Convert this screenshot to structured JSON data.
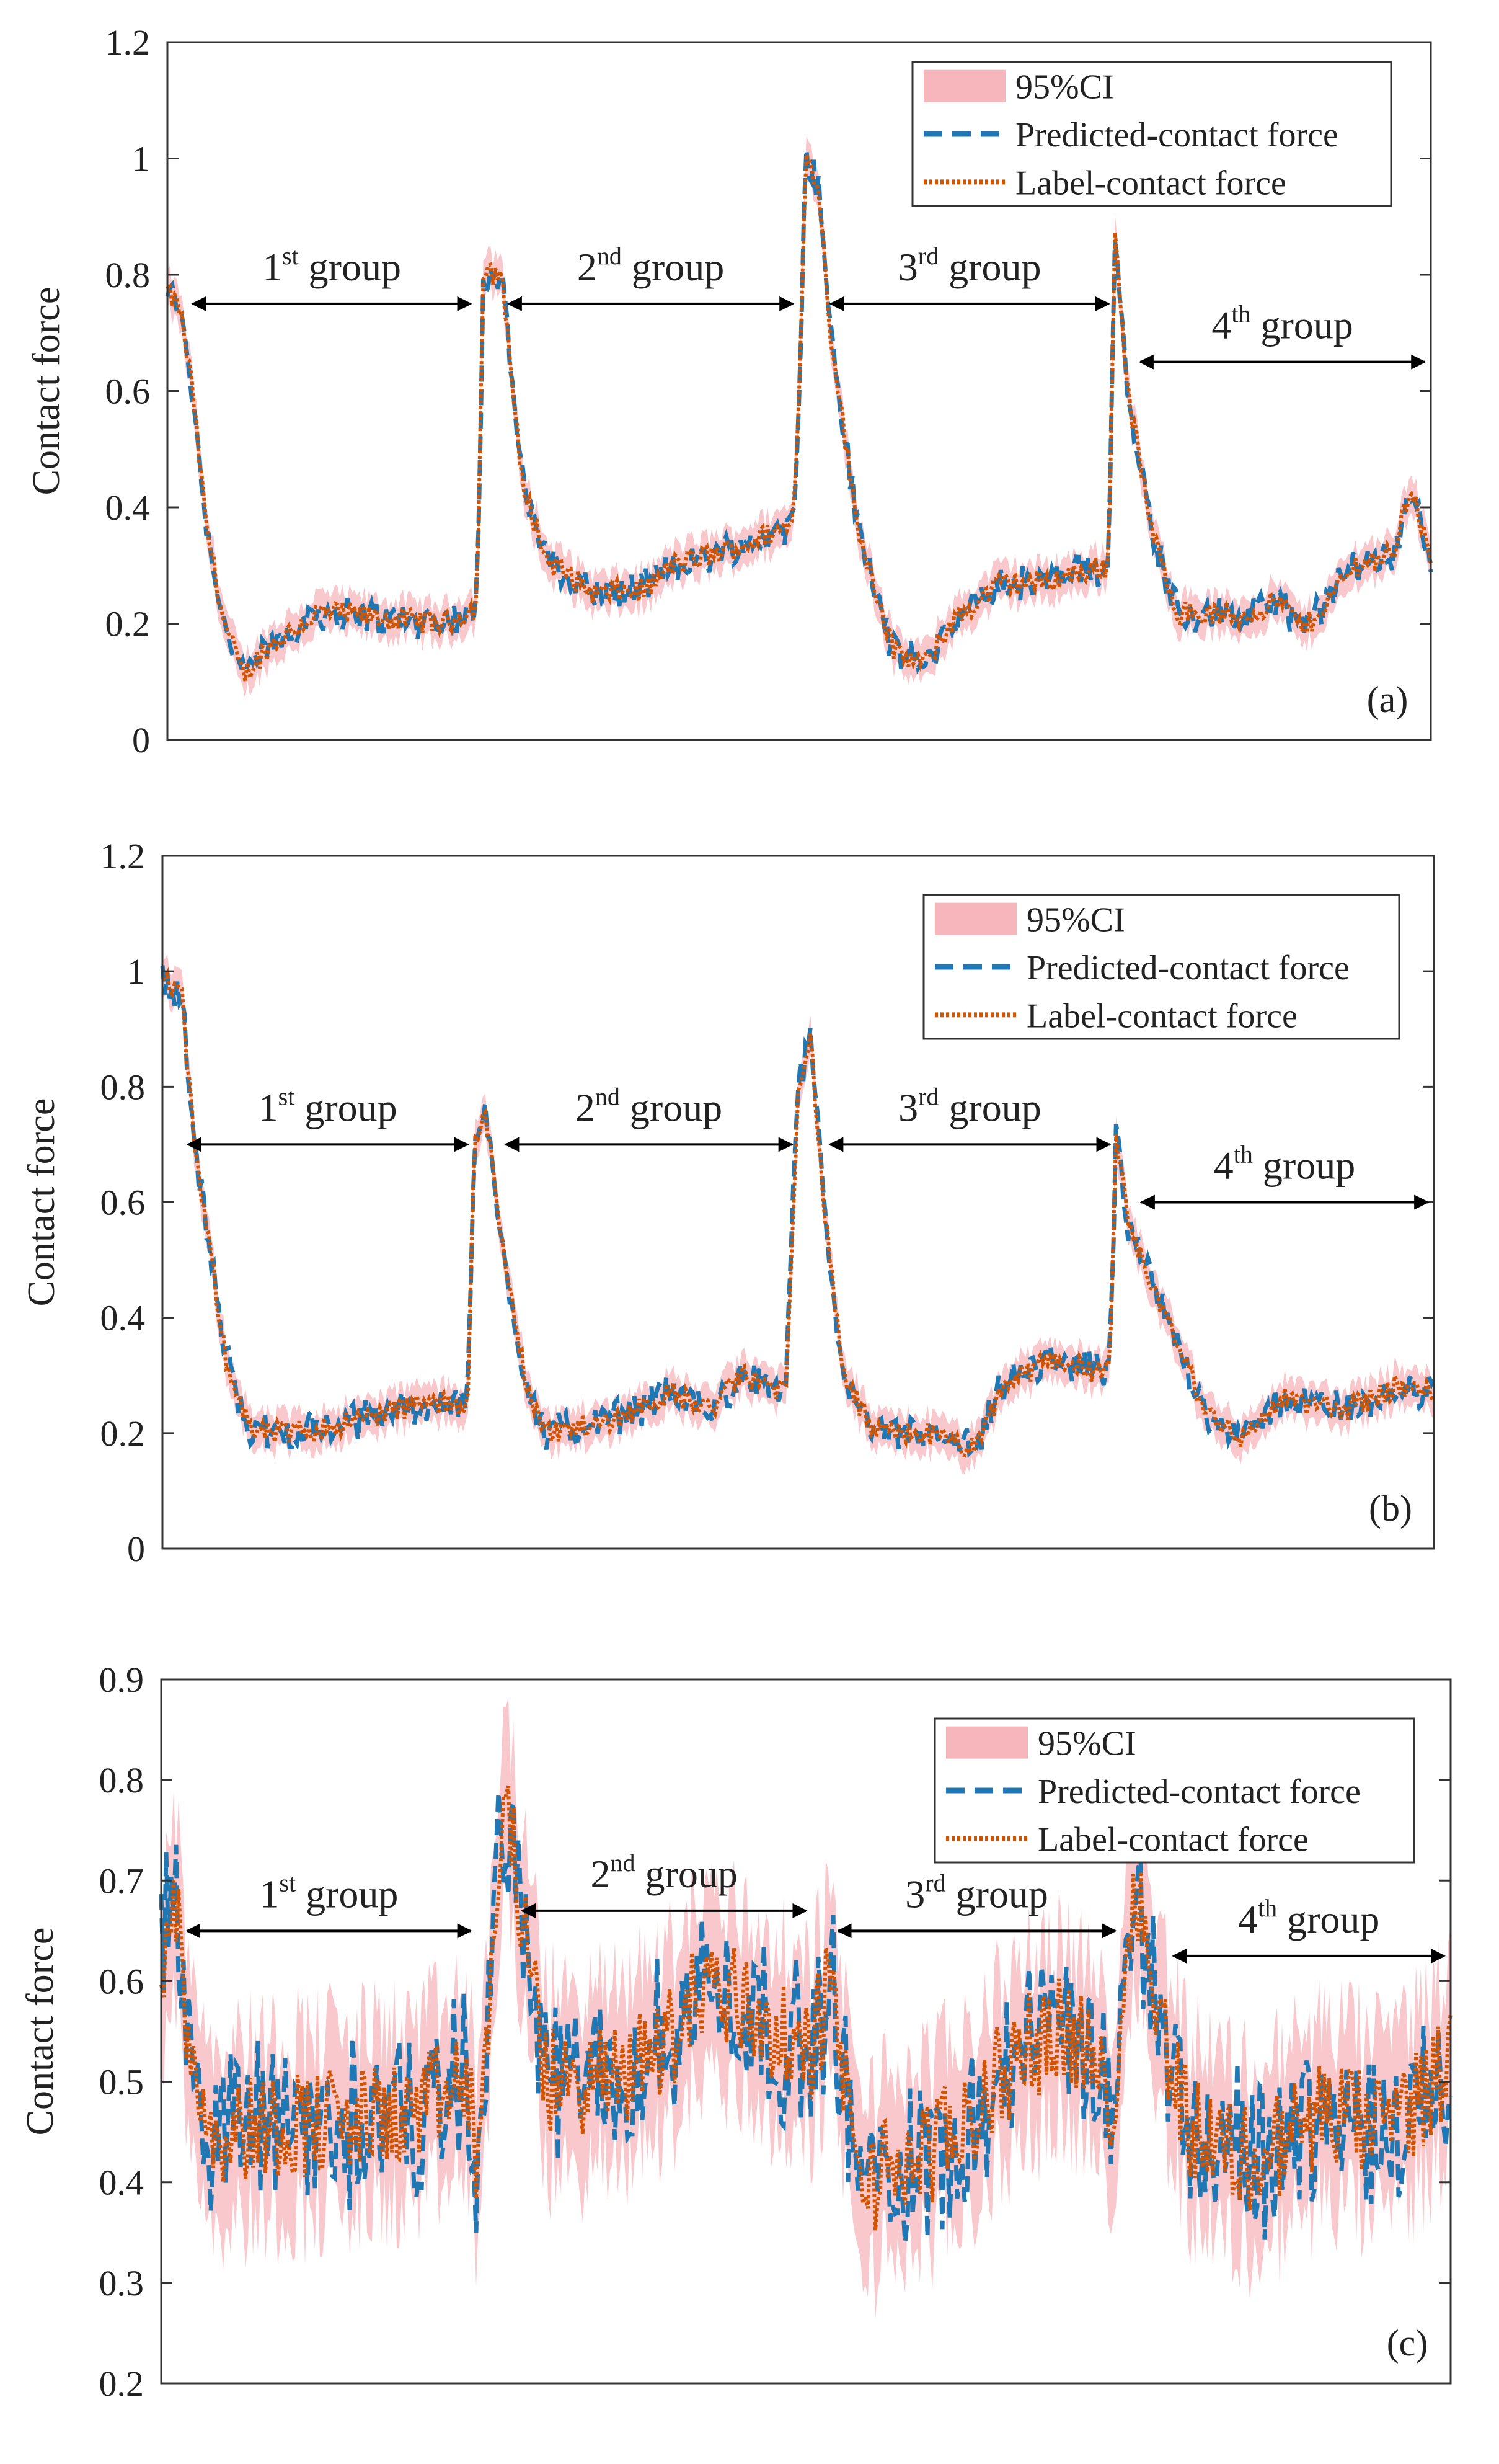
{
  "colors": {
    "predicted": "#1f77b4",
    "label": "#d35400",
    "ci": "#f7b6bb",
    "axis": "#333333",
    "text": "#222222"
  },
  "group_labels": [
    {
      "num": "1",
      "sup": "st",
      "word": "group"
    },
    {
      "num": "2",
      "sup": "nd",
      "word": "group"
    },
    {
      "num": "3",
      "sup": "rd",
      "word": "group"
    },
    {
      "num": "4",
      "sup": "th",
      "word": "group"
    }
  ],
  "legend_entries": [
    "95%CI",
    "Predicted-contact force",
    "Label-contact force"
  ],
  "chart_data": [
    {
      "type": "line",
      "panel_label": "(a)",
      "ylabel": "Contact force",
      "ylim": [
        0,
        1.2
      ],
      "yticks": [
        "0",
        "0.2",
        "0.4",
        "0.6",
        "0.8",
        "1",
        "1.2"
      ],
      "xlim": [
        0,
        1
      ],
      "grid": false,
      "legend_position": "top-right",
      "series": [
        {
          "name": "Label-contact force",
          "role": "label"
        },
        {
          "name": "Predicted-contact force",
          "role": "predicted"
        }
      ],
      "group_arrows": [
        {
          "from": 0.02,
          "to": 0.24,
          "level": 0.75
        },
        {
          "from": 0.27,
          "to": 0.495,
          "level": 0.75
        },
        {
          "from": 0.525,
          "to": 0.745,
          "level": 0.75
        },
        {
          "from": 0.77,
          "to": 0.995,
          "level": 0.65
        }
      ],
      "anchors": [
        [
          0.0,
          0.77
        ],
        [
          0.01,
          0.74
        ],
        [
          0.02,
          0.6
        ],
        [
          0.03,
          0.38
        ],
        [
          0.045,
          0.2
        ],
        [
          0.06,
          0.11
        ],
        [
          0.08,
          0.16
        ],
        [
          0.12,
          0.22
        ],
        [
          0.17,
          0.21
        ],
        [
          0.22,
          0.2
        ],
        [
          0.245,
          0.23
        ],
        [
          0.25,
          0.8
        ],
        [
          0.265,
          0.8
        ],
        [
          0.28,
          0.45
        ],
        [
          0.3,
          0.31
        ],
        [
          0.34,
          0.25
        ],
        [
          0.38,
          0.26
        ],
        [
          0.4,
          0.3
        ],
        [
          0.45,
          0.33
        ],
        [
          0.495,
          0.37
        ],
        [
          0.5,
          0.6
        ],
        [
          0.505,
          1.0
        ],
        [
          0.515,
          0.96
        ],
        [
          0.525,
          0.7
        ],
        [
          0.545,
          0.38
        ],
        [
          0.575,
          0.15
        ],
        [
          0.6,
          0.13
        ],
        [
          0.62,
          0.2
        ],
        [
          0.66,
          0.27
        ],
        [
          0.69,
          0.27
        ],
        [
          0.745,
          0.3
        ],
        [
          0.75,
          0.88
        ],
        [
          0.76,
          0.6
        ],
        [
          0.78,
          0.35
        ],
        [
          0.8,
          0.22
        ],
        [
          0.85,
          0.21
        ],
        [
          0.88,
          0.24
        ],
        [
          0.9,
          0.19
        ],
        [
          0.94,
          0.3
        ],
        [
          0.97,
          0.32
        ],
        [
          0.985,
          0.44
        ],
        [
          1.0,
          0.3
        ]
      ]
    },
    {
      "type": "line",
      "panel_label": "(b)",
      "ylabel": "Contact force",
      "ylim": [
        0,
        1.2
      ],
      "yticks": [
        "0",
        "0.2",
        "0.4",
        "0.6",
        "0.8",
        "1",
        "1.2"
      ],
      "xlim": [
        0,
        1
      ],
      "grid": false,
      "legend_position": "top-right",
      "series": [
        {
          "name": "Label-contact force",
          "role": "label"
        },
        {
          "name": "Predicted-contact force",
          "role": "predicted"
        }
      ],
      "group_arrows": [
        {
          "from": 0.02,
          "to": 0.24,
          "level": 0.7
        },
        {
          "from": 0.27,
          "to": 0.495,
          "level": 0.7
        },
        {
          "from": 0.525,
          "to": 0.745,
          "level": 0.7
        },
        {
          "from": 0.77,
          "to": 0.995,
          "level": 0.6
        }
      ],
      "anchors": [
        [
          0.0,
          0.99
        ],
        [
          0.015,
          0.96
        ],
        [
          0.025,
          0.7
        ],
        [
          0.035,
          0.55
        ],
        [
          0.05,
          0.33
        ],
        [
          0.07,
          0.2
        ],
        [
          0.1,
          0.2
        ],
        [
          0.15,
          0.22
        ],
        [
          0.2,
          0.25
        ],
        [
          0.24,
          0.25
        ],
        [
          0.245,
          0.7
        ],
        [
          0.255,
          0.75
        ],
        [
          0.265,
          0.55
        ],
        [
          0.285,
          0.3
        ],
        [
          0.3,
          0.2
        ],
        [
          0.35,
          0.22
        ],
        [
          0.4,
          0.27
        ],
        [
          0.43,
          0.24
        ],
        [
          0.455,
          0.3
        ],
        [
          0.49,
          0.27
        ],
        [
          0.5,
          0.8
        ],
        [
          0.51,
          0.88
        ],
        [
          0.52,
          0.6
        ],
        [
          0.535,
          0.3
        ],
        [
          0.56,
          0.2
        ],
        [
          0.6,
          0.2
        ],
        [
          0.64,
          0.17
        ],
        [
          0.66,
          0.28
        ],
        [
          0.7,
          0.33
        ],
        [
          0.745,
          0.3
        ],
        [
          0.75,
          0.72
        ],
        [
          0.76,
          0.55
        ],
        [
          0.78,
          0.45
        ],
        [
          0.82,
          0.24
        ],
        [
          0.85,
          0.19
        ],
        [
          0.88,
          0.26
        ],
        [
          0.93,
          0.24
        ],
        [
          0.97,
          0.28
        ],
        [
          1.0,
          0.27
        ]
      ]
    },
    {
      "type": "line",
      "panel_label": "(c)",
      "ylabel": "Contact force",
      "ylim": [
        0.2,
        0.9
      ],
      "yticks": [
        "0.2",
        "0.3",
        "0.4",
        "0.5",
        "0.6",
        "0.7",
        "0.8",
        "0.9"
      ],
      "xlim": [
        0,
        1
      ],
      "grid": false,
      "legend_position": "top-right",
      "series": [
        {
          "name": "Label-contact force",
          "role": "label"
        },
        {
          "name": "Predicted-contact force",
          "role": "predicted"
        }
      ],
      "group_arrows": [
        {
          "from": 0.02,
          "to": 0.24,
          "level": 0.65
        },
        {
          "from": 0.28,
          "to": 0.5,
          "level": 0.67
        },
        {
          "from": 0.525,
          "to": 0.74,
          "level": 0.65
        },
        {
          "from": 0.785,
          "to": 0.995,
          "level": 0.625
        }
      ],
      "anchors": [
        [
          0.0,
          0.62
        ],
        [
          0.01,
          0.7
        ],
        [
          0.02,
          0.55
        ],
        [
          0.04,
          0.45
        ],
        [
          0.1,
          0.46
        ],
        [
          0.15,
          0.46
        ],
        [
          0.2,
          0.47
        ],
        [
          0.24,
          0.5
        ],
        [
          0.245,
          0.38
        ],
        [
          0.26,
          0.7
        ],
        [
          0.27,
          0.78
        ],
        [
          0.28,
          0.65
        ],
        [
          0.3,
          0.5
        ],
        [
          0.35,
          0.5
        ],
        [
          0.4,
          0.55
        ],
        [
          0.42,
          0.6
        ],
        [
          0.45,
          0.58
        ],
        [
          0.5,
          0.52
        ],
        [
          0.52,
          0.6
        ],
        [
          0.54,
          0.4
        ],
        [
          0.58,
          0.42
        ],
        [
          0.62,
          0.45
        ],
        [
          0.66,
          0.52
        ],
        [
          0.7,
          0.56
        ],
        [
          0.74,
          0.48
        ],
        [
          0.755,
          0.72
        ],
        [
          0.77,
          0.58
        ],
        [
          0.8,
          0.45
        ],
        [
          0.85,
          0.42
        ],
        [
          0.9,
          0.47
        ],
        [
          0.95,
          0.45
        ],
        [
          1.0,
          0.52
        ]
      ]
    }
  ]
}
